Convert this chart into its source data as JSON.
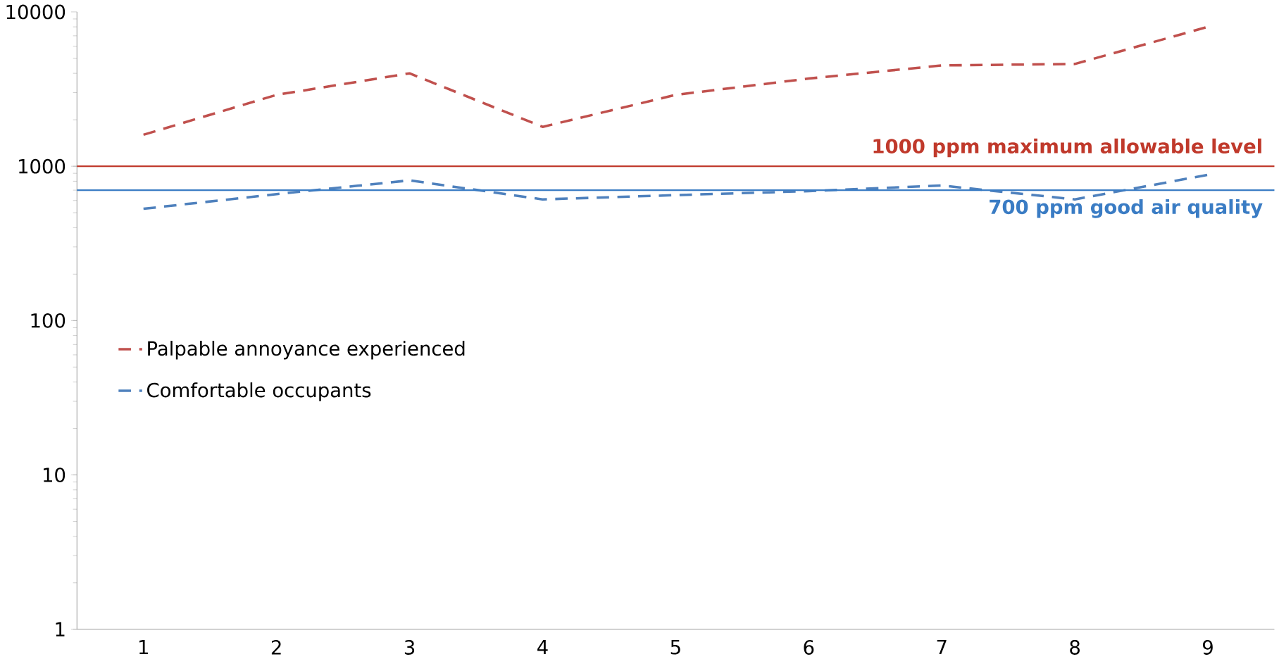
{
  "chart_data": {
    "type": "line",
    "categories": [
      "1",
      "2",
      "3",
      "4",
      "5",
      "6",
      "7",
      "8",
      "9"
    ],
    "series": [
      {
        "name": "Palpable annoyance experienced",
        "color": "#c0504d",
        "values": [
          1600,
          2900,
          4000,
          1800,
          2900,
          3700,
          4500,
          4600,
          8000
        ]
      },
      {
        "name": "Comfortable occupants",
        "color": "#4f81bd",
        "values": [
          530,
          660,
          810,
          610,
          650,
          690,
          750,
          610,
          880
        ]
      }
    ],
    "log": "y",
    "ylim": [
      1,
      10000
    ],
    "yticks": [
      1,
      10,
      100,
      1000,
      10000
    ],
    "grid": false,
    "legend": "center left",
    "line_style": "dashed",
    "marker": "none",
    "ref_lines": [
      {
        "axis": "y",
        "value": 1000,
        "label": "1000 ppm maximum allowable level",
        "color": "#c0392b"
      },
      {
        "axis": "y",
        "value": 700,
        "label": "700 ppm good air quality",
        "color": "#3a7cc4"
      }
    ]
  }
}
